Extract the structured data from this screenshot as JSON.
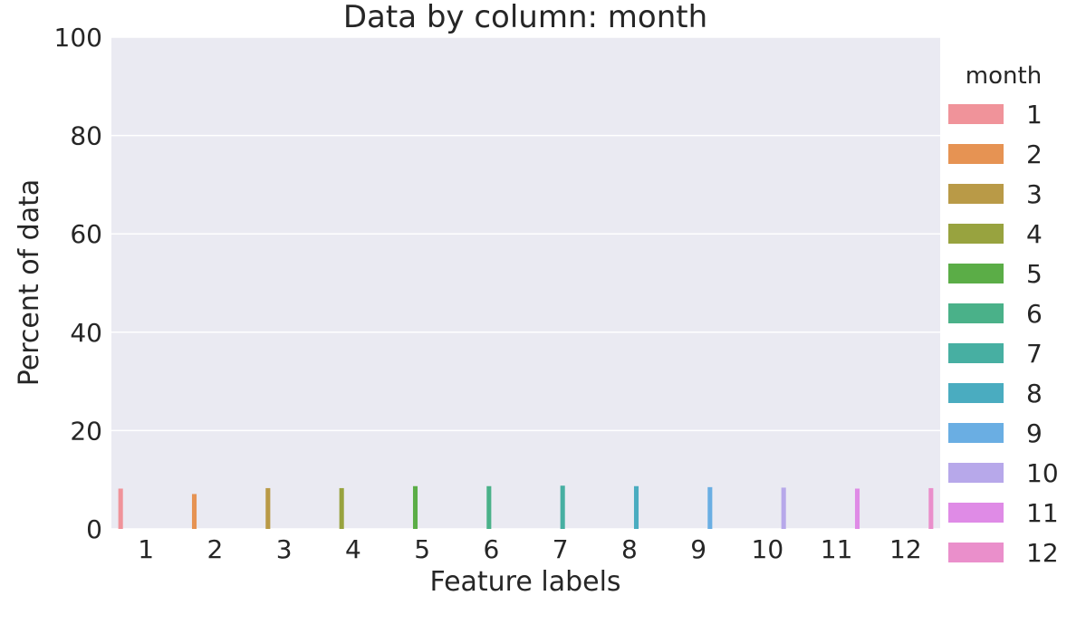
{
  "chart_data": {
    "type": "bar",
    "title": "Data by column: month",
    "xlabel": "Feature labels",
    "ylabel": "Percent of data",
    "ylim": [
      0,
      100
    ],
    "yticks": [
      0,
      20,
      40,
      60,
      80,
      100
    ],
    "grid": true,
    "categories": [
      "1",
      "2",
      "3",
      "4",
      "5",
      "6",
      "7",
      "8",
      "9",
      "10",
      "11",
      "12"
    ],
    "legend": {
      "title": "month",
      "placement": "right"
    },
    "series": [
      {
        "name": "1",
        "color": "#f0939a",
        "values": [
          8.2,
          0,
          0,
          0,
          0,
          0,
          0,
          0,
          0,
          0,
          0,
          0
        ]
      },
      {
        "name": "2",
        "color": "#e69353",
        "values": [
          0,
          7.1,
          0,
          0,
          0,
          0,
          0,
          0,
          0,
          0,
          0,
          0
        ]
      },
      {
        "name": "3",
        "color": "#b99a47",
        "values": [
          0,
          0,
          8.3,
          0,
          0,
          0,
          0,
          0,
          0,
          0,
          0,
          0
        ]
      },
      {
        "name": "4",
        "color": "#98a33f",
        "values": [
          0,
          0,
          0,
          8.3,
          0,
          0,
          0,
          0,
          0,
          0,
          0,
          0
        ]
      },
      {
        "name": "5",
        "color": "#5bad47",
        "values": [
          0,
          0,
          0,
          0,
          8.7,
          0,
          0,
          0,
          0,
          0,
          0,
          0
        ]
      },
      {
        "name": "6",
        "color": "#4ab189",
        "values": [
          0,
          0,
          0,
          0,
          0,
          8.7,
          0,
          0,
          0,
          0,
          0,
          0
        ]
      },
      {
        "name": "7",
        "color": "#47afa2",
        "values": [
          0,
          0,
          0,
          0,
          0,
          0,
          8.8,
          0,
          0,
          0,
          0,
          0
        ]
      },
      {
        "name": "8",
        "color": "#4aacc0",
        "values": [
          0,
          0,
          0,
          0,
          0,
          0,
          0,
          8.7,
          0,
          0,
          0,
          0
        ]
      },
      {
        "name": "9",
        "color": "#6aaee3",
        "values": [
          0,
          0,
          0,
          0,
          0,
          0,
          0,
          0,
          8.5,
          0,
          0,
          0
        ]
      },
      {
        "name": "10",
        "color": "#b7a8ea",
        "values": [
          0,
          0,
          0,
          0,
          0,
          0,
          0,
          0,
          0,
          8.4,
          0,
          0
        ]
      },
      {
        "name": "11",
        "color": "#df8be6",
        "values": [
          0,
          0,
          0,
          0,
          0,
          0,
          0,
          0,
          0,
          0,
          8.2,
          0
        ]
      },
      {
        "name": "12",
        "color": "#ea8fcb",
        "values": [
          0,
          0,
          0,
          0,
          0,
          0,
          0,
          0,
          0,
          0,
          0,
          8.3
        ]
      }
    ]
  },
  "colors": {
    "plot_background": "#eaeaf2",
    "grid": "#ffffff",
    "text": "#262626"
  }
}
